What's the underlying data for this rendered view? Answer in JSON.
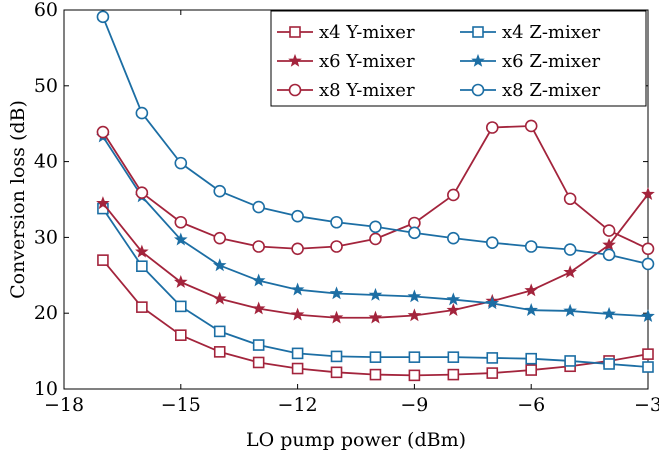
{
  "chart_data": {
    "type": "line",
    "title": "",
    "xlabel": "LO pump power (dBm)",
    "ylabel": "Conversion loss (dB)",
    "xlim": [
      -18,
      -3
    ],
    "ylim": [
      10,
      60
    ],
    "xticks": [
      -18,
      -15,
      -12,
      -9,
      -6,
      -3
    ],
    "xtick_labels": [
      "−18",
      "−15",
      "−12",
      "−9",
      "−6",
      "−3"
    ],
    "yticks": [
      10,
      20,
      30,
      40,
      50,
      60
    ],
    "ytick_labels": [
      "10",
      "20",
      "30",
      "40",
      "50",
      "60"
    ],
    "grid": false,
    "legend_position": "top-right",
    "x": [
      -17,
      -16,
      -15,
      -14,
      -13,
      -12,
      -11,
      -10,
      -9,
      -8,
      -7,
      -6,
      -5,
      -4,
      -3
    ],
    "series": [
      {
        "name": "x4 Y-mixer",
        "color": "#a3243c",
        "marker": "square",
        "values": [
          27.0,
          20.8,
          17.1,
          14.9,
          13.5,
          12.7,
          12.2,
          11.9,
          11.8,
          11.9,
          12.1,
          12.5,
          13.0,
          13.7,
          14.6
        ]
      },
      {
        "name": "x4 Z-mixer",
        "color": "#1c6ea4",
        "marker": "square",
        "values": [
          33.8,
          26.2,
          20.9,
          17.6,
          15.8,
          14.7,
          14.3,
          14.2,
          14.2,
          14.2,
          14.1,
          14.0,
          13.7,
          13.3,
          12.9
        ]
      },
      {
        "name": "x6 Y-mixer",
        "color": "#a3243c",
        "marker": "star",
        "values": [
          34.5,
          28.1,
          24.1,
          21.9,
          20.6,
          19.8,
          19.4,
          19.4,
          19.7,
          20.4,
          21.6,
          23.0,
          25.4,
          29.0,
          35.7
        ]
      },
      {
        "name": "x6 Z-mixer",
        "color": "#1c6ea4",
        "marker": "star",
        "values": [
          43.3,
          35.4,
          29.7,
          26.3,
          24.3,
          23.1,
          22.6,
          22.4,
          22.2,
          21.8,
          21.3,
          20.4,
          20.3,
          19.9,
          19.6
        ]
      },
      {
        "name": "x8 Y-mixer",
        "color": "#a3243c",
        "marker": "circle",
        "values": [
          43.9,
          35.9,
          32.0,
          29.9,
          28.8,
          28.5,
          28.8,
          29.8,
          31.9,
          35.6,
          44.5,
          44.7,
          35.1,
          30.9,
          28.5
        ]
      },
      {
        "name": "x8 Z-mixer",
        "color": "#1c6ea4",
        "marker": "circle",
        "values": [
          59.1,
          46.4,
          39.8,
          36.1,
          34.0,
          32.8,
          32.0,
          31.4,
          30.6,
          29.9,
          29.3,
          28.8,
          28.4,
          27.7,
          26.5
        ]
      }
    ],
    "legend_order": [
      0,
      1,
      2,
      3,
      4,
      5
    ]
  }
}
